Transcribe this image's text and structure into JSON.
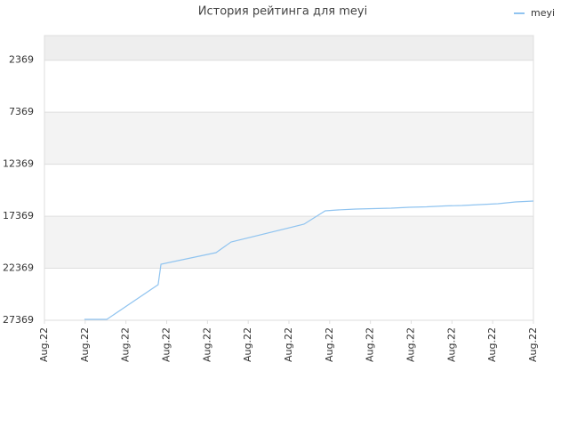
{
  "chart_data": {
    "type": "line",
    "title": "История рейтинга для meyi",
    "x": [
      0.98,
      1.53,
      2.79,
      2.86,
      4.21,
      4.58,
      6.37,
      6.89,
      7.2,
      7.64,
      8.07,
      8.51,
      8.95,
      9.38,
      9.82,
      10.25,
      10.69,
      11.13,
      11.56,
      12
    ],
    "series": [
      {
        "name": "meyi",
        "color": "#90c4f0",
        "values": [
          27283,
          27283,
          23948,
          21981,
          20869,
          19843,
          18132,
          16849,
          16764,
          16678,
          16636,
          16593,
          16507,
          16464,
          16379,
          16336,
          16250,
          16165,
          15994,
          15908
        ]
      }
    ],
    "xlim": [
      0,
      12
    ],
    "xticks": [
      {
        "value": 0,
        "label": "Aug.22"
      },
      {
        "value": 1,
        "label": "Aug.22"
      },
      {
        "value": 2,
        "label": "Aug.22"
      },
      {
        "value": 3,
        "label": "Aug.22"
      },
      {
        "value": 4,
        "label": "Aug.22"
      },
      {
        "value": 5,
        "label": "Aug.22"
      },
      {
        "value": 6,
        "label": "Aug.22"
      },
      {
        "value": 7,
        "label": "Aug.22"
      },
      {
        "value": 8,
        "label": "Aug.22"
      },
      {
        "value": 9,
        "label": "Aug.22"
      },
      {
        "value": 10,
        "label": "Aug.22"
      },
      {
        "value": 11,
        "label": "Aug.22"
      },
      {
        "value": 12,
        "label": "Aug.22"
      }
    ],
    "ylim": [
      27369,
      0
    ],
    "yticks": [
      2369,
      7369,
      12369,
      17369,
      22369,
      27369
    ],
    "grid": true,
    "legend": "top-right"
  }
}
